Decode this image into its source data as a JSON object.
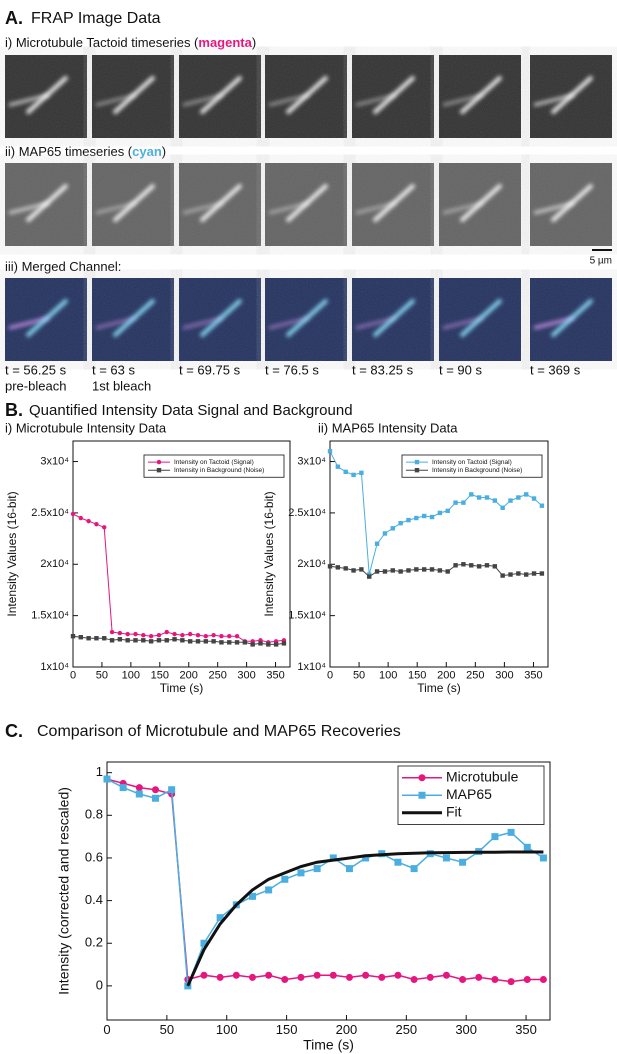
{
  "panel_a": {
    "label": "A.",
    "title": "FRAP Image Data",
    "rows": [
      {
        "title": [
          "i) Microtubule Tactoid timeseries (",
          "magenta",
          ")"
        ]
      },
      {
        "title": [
          "ii) MAP65 timeseries (",
          "cyan",
          ")"
        ]
      },
      {
        "title": [
          "iii) Merged Channel:"
        ]
      }
    ],
    "scale_bar": "5 µm",
    "captions": [
      [
        "t = 56.25 s",
        "pre-bleach"
      ],
      [
        "t = 63 s",
        "1st bleach"
      ],
      [
        "t = 69.75 s"
      ],
      [
        "t = 76.5 s"
      ],
      [
        "t = 83.25 s"
      ],
      [
        "t = 90 s"
      ],
      [
        "t = 369 s"
      ]
    ]
  },
  "panel_b": {
    "label": "B.",
    "title": "Quantified Intensity Data Signal and Background"
  },
  "chart_data": [
    {
      "type": "line",
      "title": "i) Microtubule Intensity Data",
      "x_label": "Time (s)",
      "y_label": "Intensity Values (16-bit)",
      "x": [
        0,
        13.5,
        27,
        40.5,
        54,
        67.5,
        81,
        94.5,
        108,
        121.5,
        135,
        148.5,
        162,
        175.5,
        189,
        202.5,
        216,
        229.5,
        243,
        256.5,
        270,
        283.5,
        297,
        310.5,
        324,
        337.5,
        351,
        364.5
      ],
      "xlim": [
        0,
        375
      ],
      "xticks": [
        0,
        50,
        100,
        150,
        200,
        250,
        300,
        350
      ],
      "ylim": [
        10000,
        32000
      ],
      "yticks": [
        {
          "value": 10000,
          "label": "1x10⁴"
        },
        {
          "value": 15000,
          "label": "1.5x10⁴"
        },
        {
          "value": 20000,
          "label": "2x10⁴"
        },
        {
          "value": 25000,
          "label": "2.5x10⁴"
        },
        {
          "value": 30000,
          "label": "3x10⁴"
        }
      ],
      "legend": "upper right",
      "series": [
        {
          "name": "Intensity on Tactoid (Signal)",
          "color": "#e5177e",
          "marker": "circle",
          "values": [
            24900,
            24500,
            24200,
            23900,
            23600,
            13400,
            13300,
            13200,
            13200,
            13100,
            13000,
            13100,
            13400,
            13200,
            13100,
            13200,
            13100,
            13000,
            13100,
            13000,
            13000,
            13000,
            12500,
            12500,
            12600,
            12400,
            12500,
            12600
          ]
        },
        {
          "name": "Intensity in Background (Noise)",
          "color": "#444444",
          "marker": "square",
          "values": [
            13000,
            12900,
            12800,
            12800,
            12800,
            12600,
            12700,
            12600,
            12600,
            12600,
            12500,
            12600,
            12600,
            12700,
            12600,
            12500,
            12500,
            12500,
            12500,
            12400,
            12400,
            12400,
            12400,
            12200,
            12300,
            12200,
            12200,
            12300
          ]
        }
      ]
    },
    {
      "type": "line",
      "title": "ii) MAP65 Intensity Data",
      "x_label": "Time (s)",
      "y_label": "Intensity Values (16-bit)",
      "x": [
        0,
        13.5,
        27,
        40.5,
        54,
        67.5,
        81,
        94.5,
        108,
        121.5,
        135,
        148.5,
        162,
        175.5,
        189,
        202.5,
        216,
        229.5,
        243,
        256.5,
        270,
        283.5,
        297,
        310.5,
        324,
        337.5,
        351,
        364.5
      ],
      "xlim": [
        0,
        375
      ],
      "xticks": [
        0,
        50,
        100,
        150,
        200,
        250,
        300,
        350
      ],
      "ylim": [
        10000,
        32000
      ],
      "yticks": [
        {
          "value": 10000,
          "label": "1x10⁴"
        },
        {
          "value": 15000,
          "label": "1.5x10⁴"
        },
        {
          "value": 20000,
          "label": "2x10⁴"
        },
        {
          "value": 25000,
          "label": "2.5x10⁴"
        },
        {
          "value": 30000,
          "label": "3x10⁴"
        }
      ],
      "legend": "upper right",
      "series": [
        {
          "name": "Intensity on Tactoid (Signal)",
          "color": "#4aaee0",
          "marker": "square",
          "values": [
            31000,
            29500,
            29000,
            28700,
            28900,
            19000,
            22000,
            23000,
            23500,
            24000,
            24300,
            24500,
            24700,
            24600,
            25000,
            25200,
            26000,
            26000,
            26800,
            26500,
            26500,
            26200,
            25500,
            26200,
            26500,
            26800,
            26400,
            25700
          ]
        },
        {
          "name": "Intensity in Background (Noise)",
          "color": "#444444",
          "marker": "square",
          "values": [
            19800,
            19700,
            19600,
            19400,
            19500,
            18800,
            19300,
            19300,
            19400,
            19300,
            19400,
            19500,
            19500,
            19500,
            19400,
            19300,
            19900,
            20000,
            19900,
            19800,
            19900,
            19800,
            18900,
            19000,
            19100,
            19000,
            19100,
            19100
          ]
        }
      ]
    },
    {
      "type": "line",
      "panel_label": "C.",
      "title": "Comparison of Microtubule and MAP65 Recoveries",
      "x_label": "Time (s)",
      "y_label": "Intensity (corrected and rescaled)",
      "x": [
        0,
        13.5,
        27,
        40.5,
        54,
        67.5,
        81,
        94.5,
        108,
        121.5,
        135,
        148.5,
        162,
        175.5,
        189,
        202.5,
        216,
        229.5,
        243,
        256.5,
        270,
        283.5,
        297,
        310.5,
        324,
        337.5,
        351,
        364.5
      ],
      "xlim": [
        0,
        370
      ],
      "xticks": [
        0,
        50,
        100,
        150,
        200,
        250,
        300,
        350
      ],
      "ylim": [
        -0.16,
        1.05
      ],
      "yticks": [
        0,
        0.2,
        0.4,
        0.6,
        0.8,
        1
      ],
      "legend": "upper right",
      "series": [
        {
          "name": "Microtubule",
          "color": "#e5177e",
          "marker": "circle",
          "values": [
            0.97,
            0.95,
            0.93,
            0.92,
            0.9,
            0.03,
            0.05,
            0.04,
            0.05,
            0.04,
            0.05,
            0.03,
            0.04,
            0.05,
            0.05,
            0.04,
            0.05,
            0.04,
            0.05,
            0.03,
            0.04,
            0.05,
            0.03,
            0.04,
            0.03,
            0.02,
            0.03,
            0.03
          ]
        },
        {
          "name": "MAP65",
          "color": "#4aaee0",
          "marker": "square",
          "values": [
            0.97,
            0.93,
            0.9,
            0.88,
            0.92,
            0,
            0.2,
            0.32,
            0.38,
            0.42,
            0.45,
            0.5,
            0.53,
            0.55,
            0.6,
            0.55,
            0.6,
            0.62,
            0.58,
            0.55,
            0.62,
            0.6,
            0.58,
            0.63,
            0.7,
            0.72,
            0.65,
            0.6
          ]
        },
        {
          "name": "Fit",
          "color": "#111111",
          "marker": null,
          "values": [
            null,
            null,
            null,
            null,
            null,
            0,
            0.17,
            0.29,
            0.38,
            0.45,
            0.5,
            0.53,
            0.56,
            0.58,
            0.59,
            0.6,
            0.61,
            0.615,
            0.62,
            0.622,
            0.624,
            0.625,
            0.626,
            0.627,
            0.627,
            0.628,
            0.628,
            0.628
          ]
        }
      ]
    }
  ]
}
